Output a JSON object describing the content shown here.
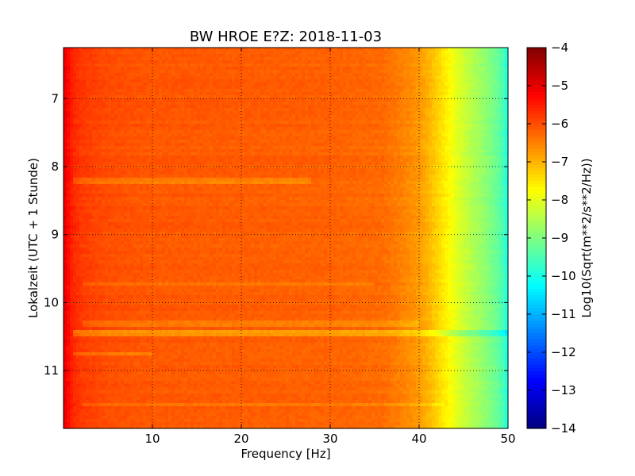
{
  "chart_data": {
    "type": "heatmap",
    "title": "BW HROE E?Z: 2018-11-03",
    "xlabel": "Frequency [Hz]",
    "ylabel": "Lokalzeit (UTC + 1 Stunde)",
    "xlim": [
      0,
      50
    ],
    "ylim_top_to_bottom": [
      6.25,
      11.85
    ],
    "x_ticks": [
      10,
      20,
      30,
      40,
      50
    ],
    "y_ticks": [
      7,
      8,
      9,
      10,
      11
    ],
    "grid": true,
    "colormap": "jet",
    "colorbar": {
      "label": "Log10(Sqrt(m**2/s**2/Hz))",
      "range": [
        -14,
        -4
      ],
      "ticks": [
        -4,
        -5,
        -6,
        -7,
        -8,
        -9,
        -10,
        -11,
        -12,
        -13,
        -14
      ]
    },
    "profile_frequency_hz": [
      0,
      0.5,
      1,
      2,
      5,
      10,
      20,
      30,
      36,
      38,
      40,
      41,
      42,
      43,
      44,
      45,
      46,
      47,
      48,
      49,
      49.5,
      50
    ],
    "profile_log10_amplitude": [
      -5.0,
      -5.3,
      -5.6,
      -5.8,
      -6.0,
      -6.1,
      -6.15,
      -6.2,
      -6.3,
      -6.5,
      -6.75,
      -7.0,
      -7.3,
      -7.6,
      -7.95,
      -8.25,
      -8.5,
      -8.75,
      -9.0,
      -9.3,
      -9.6,
      -10.0
    ],
    "bands": [
      {
        "time": 8.22,
        "freq_range": [
          1,
          28
        ],
        "delta": -0.35
      },
      {
        "time": 9.72,
        "freq_range": [
          2,
          35
        ],
        "delta": -0.3
      },
      {
        "time": 10.3,
        "freq_range": [
          2,
          40
        ],
        "delta": -0.35
      },
      {
        "time": 10.46,
        "freq_range": [
          1,
          50
        ],
        "delta": -0.6
      },
      {
        "time": 10.75,
        "freq_range": [
          1,
          10
        ],
        "delta": -0.4
      },
      {
        "time": 11.5,
        "freq_range": [
          2,
          43
        ],
        "delta": -0.3
      }
    ]
  }
}
